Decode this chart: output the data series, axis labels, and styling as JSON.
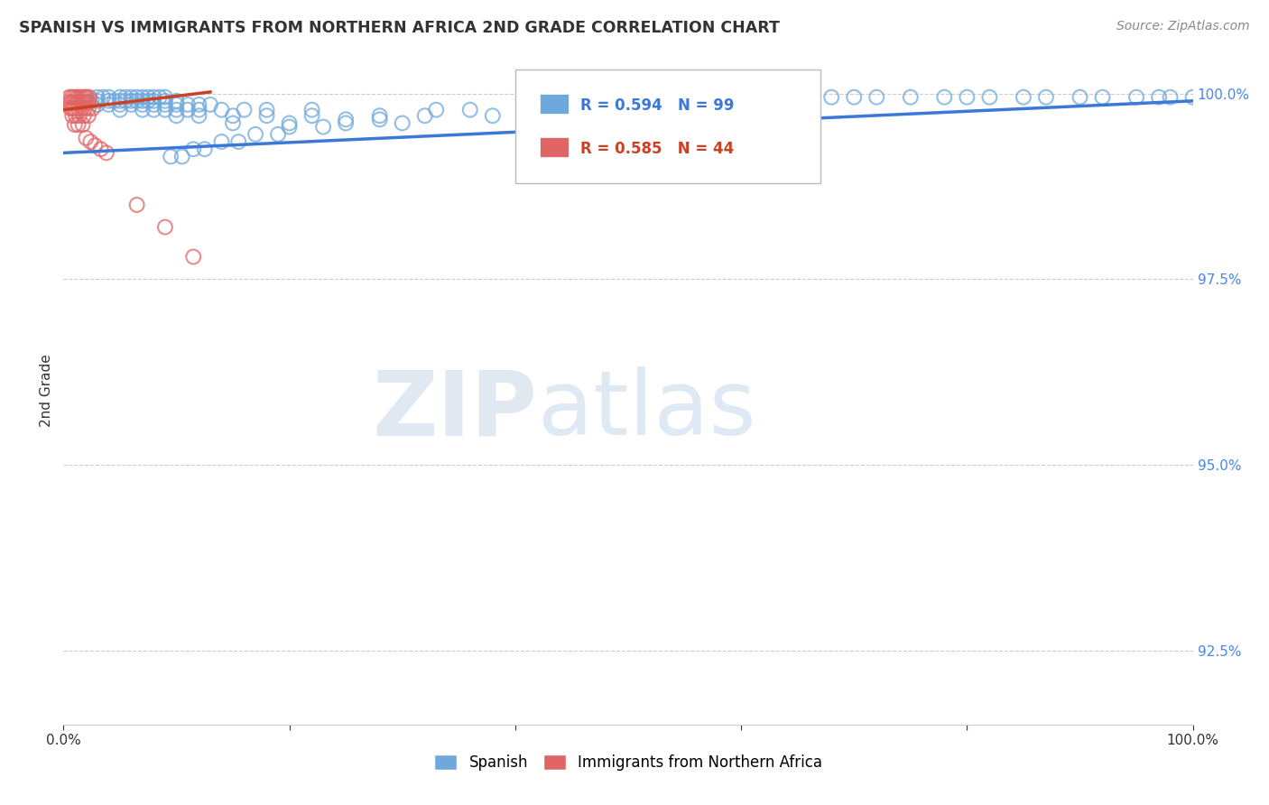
{
  "title": "SPANISH VS IMMIGRANTS FROM NORTHERN AFRICA 2ND GRADE CORRELATION CHART",
  "source": "Source: ZipAtlas.com",
  "ylabel": "2nd Grade",
  "xlim": [
    0.0,
    1.0
  ],
  "ylim": [
    0.915,
    1.005
  ],
  "yticks": [
    0.925,
    0.95,
    0.975,
    1.0
  ],
  "ytick_labels": [
    "92.5%",
    "95.0%",
    "97.5%",
    "100.0%"
  ],
  "xticks": [
    0.0,
    0.2,
    0.4,
    0.6,
    0.8,
    1.0
  ],
  "xtick_labels": [
    "0.0%",
    "",
    "",
    "",
    "",
    "100.0%"
  ],
  "blue_color": "#6fa8dc",
  "pink_color": "#e06666",
  "blue_line_color": "#3c78d8",
  "pink_line_color": "#cc4125",
  "watermark_color": "#d6e4f5",
  "grid_color": "#cccccc",
  "legend_border_color": "#aaaaaa",
  "blue_R": 0.594,
  "blue_N": 99,
  "pink_R": 0.585,
  "pink_N": 44,
  "blue_scatter_x": [
    0.02,
    0.03,
    0.035,
    0.04,
    0.05,
    0.055,
    0.06,
    0.065,
    0.07,
    0.075,
    0.08,
    0.085,
    0.09,
    0.025,
    0.03,
    0.04,
    0.045,
    0.05,
    0.055,
    0.06,
    0.065,
    0.07,
    0.075,
    0.08,
    0.09,
    0.1,
    0.03,
    0.04,
    0.05,
    0.06,
    0.07,
    0.08,
    0.09,
    0.1,
    0.11,
    0.12,
    0.13,
    0.05,
    0.07,
    0.08,
    0.09,
    0.1,
    0.11,
    0.12,
    0.14,
    0.16,
    0.18,
    0.22,
    0.1,
    0.12,
    0.15,
    0.18,
    0.22,
    0.28,
    0.32,
    0.38,
    0.15,
    0.2,
    0.25,
    0.3,
    0.5,
    0.55,
    0.6,
    0.62,
    0.65,
    0.68,
    0.7,
    0.72,
    0.75,
    0.78,
    0.8,
    0.82,
    0.85,
    0.87,
    0.9,
    0.92,
    0.95,
    0.97,
    0.98,
    1.0,
    0.42,
    0.48,
    0.33,
    0.36,
    0.25,
    0.28,
    0.2,
    0.23,
    0.17,
    0.19,
    0.14,
    0.155,
    0.115,
    0.125,
    0.095,
    0.105
  ],
  "blue_scatter_y": [
    0.9995,
    0.9995,
    0.9995,
    0.9995,
    0.9995,
    0.9995,
    0.9995,
    0.9995,
    0.9995,
    0.9995,
    0.9995,
    0.9995,
    0.9995,
    0.999,
    0.999,
    0.999,
    0.999,
    0.999,
    0.999,
    0.999,
    0.999,
    0.999,
    0.999,
    0.999,
    0.999,
    0.999,
    0.9985,
    0.9985,
    0.9985,
    0.9985,
    0.9985,
    0.9985,
    0.9985,
    0.9985,
    0.9985,
    0.9985,
    0.9985,
    0.9978,
    0.9978,
    0.9978,
    0.9978,
    0.9978,
    0.9978,
    0.9978,
    0.9978,
    0.9978,
    0.9978,
    0.9978,
    0.997,
    0.997,
    0.997,
    0.997,
    0.997,
    0.997,
    0.997,
    0.997,
    0.996,
    0.996,
    0.996,
    0.996,
    0.9995,
    0.9995,
    0.9995,
    0.9995,
    0.9995,
    0.9995,
    0.9995,
    0.9995,
    0.9995,
    0.9995,
    0.9995,
    0.9995,
    0.9995,
    0.9995,
    0.9995,
    0.9995,
    0.9995,
    0.9995,
    0.9995,
    0.9995,
    0.999,
    0.999,
    0.9978,
    0.9978,
    0.9965,
    0.9965,
    0.9955,
    0.9955,
    0.9945,
    0.9945,
    0.9935,
    0.9935,
    0.9925,
    0.9925,
    0.9915,
    0.9915
  ],
  "pink_scatter_x": [
    0.005,
    0.007,
    0.009,
    0.011,
    0.013,
    0.015,
    0.017,
    0.019,
    0.021,
    0.023,
    0.005,
    0.007,
    0.009,
    0.011,
    0.013,
    0.015,
    0.017,
    0.019,
    0.022,
    0.006,
    0.008,
    0.01,
    0.013,
    0.016,
    0.019,
    0.022,
    0.026,
    0.008,
    0.011,
    0.014,
    0.018,
    0.022,
    0.01,
    0.013,
    0.017,
    0.065,
    0.09,
    0.115,
    0.02,
    0.024,
    0.028,
    0.033,
    0.038
  ],
  "pink_scatter_y": [
    0.9995,
    0.9995,
    0.9995,
    0.9995,
    0.9995,
    0.9995,
    0.9995,
    0.9995,
    0.9995,
    0.9995,
    0.9988,
    0.9988,
    0.9988,
    0.9988,
    0.9988,
    0.9988,
    0.9988,
    0.9988,
    0.9988,
    0.998,
    0.998,
    0.998,
    0.998,
    0.998,
    0.998,
    0.998,
    0.998,
    0.997,
    0.997,
    0.997,
    0.997,
    0.997,
    0.9958,
    0.9958,
    0.9958,
    0.985,
    0.982,
    0.978,
    0.994,
    0.9935,
    0.993,
    0.9925,
    0.992
  ],
  "blue_trend_x0": 0.0,
  "blue_trend_x1": 1.0,
  "blue_trend_y0": 0.992,
  "blue_trend_y1": 0.999,
  "pink_trend_x0": 0.0,
  "pink_trend_x1": 0.13,
  "pink_trend_y0": 0.9978,
  "pink_trend_y1": 1.0002
}
